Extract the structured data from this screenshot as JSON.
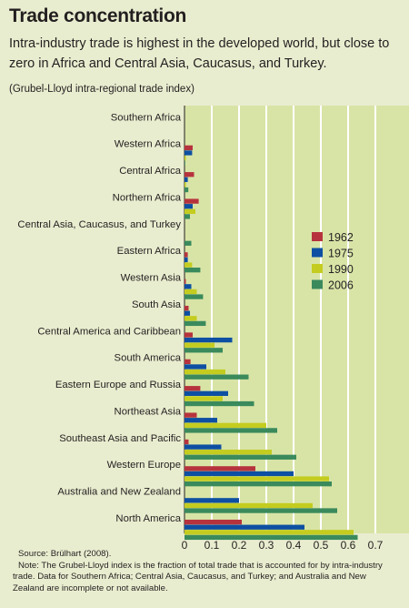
{
  "colors": {
    "background": "#e9edcf",
    "plot_background": "#d8e4a6",
    "gridline": "#ffffff",
    "1962": "#b6333d",
    "1975": "#0d4fa2",
    "1990": "#c4cc1f",
    "2006": "#3a8a5c"
  },
  "chart_data": {
    "type": "bar",
    "orientation": "horizontal",
    "title": "Trade concentration",
    "subtitle": "Intra-industry trade is highest in the developed world, but close to zero in Africa and Central Asia, Caucasus, and Turkey.",
    "ylabel": "(Grubel-Lloyd intra-regional trade index)",
    "categories": [
      "Southern Africa",
      "Western Africa",
      "Central Africa",
      "Northern Africa",
      "Central Asia, Caucasus, and Turkey",
      "Eastern Africa",
      "Western Asia",
      "South Asia",
      "Central America and Caribbean",
      "South America",
      "Eastern Europe and Russia",
      "Northeast Asia",
      "Southeast Asia and Pacific",
      "Western Europe",
      "Australia and New Zealand",
      "North America"
    ],
    "series": [
      {
        "name": "1962",
        "values": [
          null,
          0.03,
          0.035,
          0.052,
          null,
          0.012,
          0.005,
          0.015,
          0.03,
          0.022,
          0.058,
          0.045,
          0.015,
          0.26,
          null,
          0.21
        ]
      },
      {
        "name": "1975",
        "values": [
          null,
          0.028,
          0.012,
          0.03,
          null,
          0.012,
          0.025,
          0.02,
          0.175,
          0.08,
          0.16,
          0.12,
          0.135,
          0.4,
          0.2,
          0.44
        ]
      },
      {
        "name": "1990",
        "values": [
          null,
          0.005,
          0.005,
          0.04,
          null,
          0.028,
          0.045,
          0.045,
          0.11,
          0.15,
          0.14,
          0.3,
          0.32,
          0.53,
          0.47,
          0.62
        ]
      },
      {
        "name": "2006",
        "values": [
          null,
          0.002,
          0.014,
          0.02,
          0.025,
          0.058,
          0.068,
          0.078,
          0.14,
          0.235,
          0.255,
          0.34,
          0.41,
          0.54,
          0.56,
          0.635
        ]
      }
    ],
    "xlim": [
      0,
      0.7
    ],
    "xticks": [
      "0",
      "0.1",
      "0.2",
      "0.3",
      "0.4",
      "0.5",
      "0.6",
      "0.7"
    ],
    "grid": true,
    "legend_position": "right",
    "source": "Source: Brülhart (2008).",
    "note": "Note: The Grubel-Lloyd index is the fraction of total trade that is accounted for by intra-industry trade. Data for Southern Africa; Central Asia, Caucasus, and Turkey; and Australia and New Zealand are incomplete or not available."
  }
}
